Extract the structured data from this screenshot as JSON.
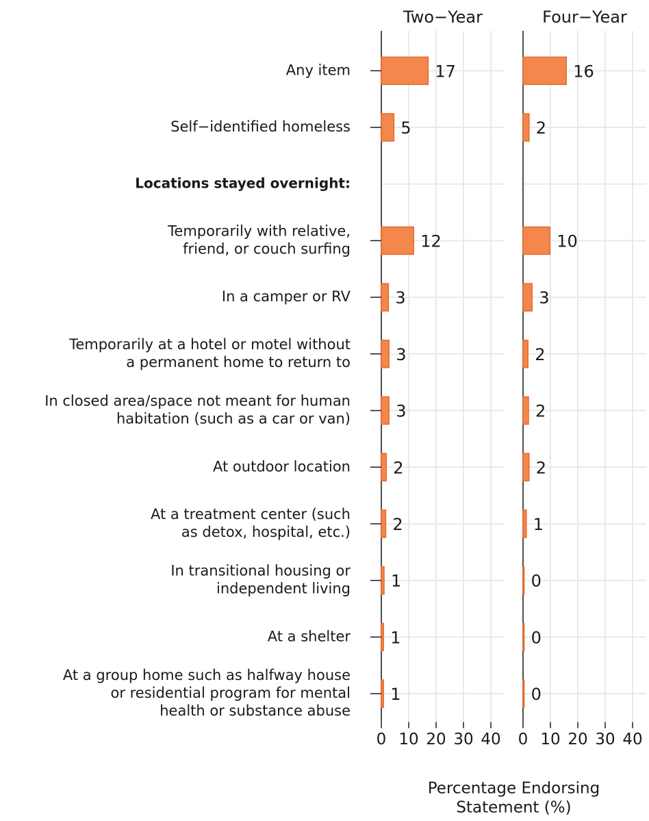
{
  "chart_data": {
    "type": "bar",
    "categories": [
      [
        "Any item"
      ],
      [
        "Self−identified homeless"
      ],
      [
        "Locations stayed overnight:"
      ],
      [
        "Temporarily with relative,",
        "friend, or couch surfing"
      ],
      [
        "In a camper or RV"
      ],
      [
        "Temporarily at a hotel or motel without",
        "a permanent home to return to"
      ],
      [
        "In closed area/space not meant for human",
        "habitation (such as a car or van)"
      ],
      [
        "At outdoor location"
      ],
      [
        "At a treatment center (such",
        "as detox, hospital, etc.)"
      ],
      [
        "In transitional housing or",
        "independent living"
      ],
      [
        "At a shelter"
      ],
      [
        "At a group home such as halfway house",
        "or residential program for mental",
        "health or substance abuse"
      ]
    ],
    "series": [
      {
        "name": "Two−Year",
        "color": "#f4874b",
        "values": [
          17.1,
          4.6,
          null,
          11.8,
          2.6,
          2.8,
          2.8,
          1.8,
          1.6,
          1.0,
          0.8,
          0.8
        ],
        "value_labels": [
          "17",
          "5",
          null,
          "12",
          "3",
          "3",
          "3",
          "2",
          "2",
          "1",
          "1",
          "1"
        ]
      },
      {
        "name": "Four−Year",
        "color": "#f4874b",
        "values": [
          15.8,
          2.2,
          null,
          9.8,
          3.3,
          1.8,
          2.0,
          2.2,
          1.2,
          0.4,
          0.4,
          0.4
        ],
        "value_labels": [
          "16",
          "2",
          null,
          "10",
          "3",
          "2",
          "2",
          "2",
          "1",
          "0",
          "0",
          "0"
        ]
      }
    ],
    "xlim": [
      0,
      45
    ],
    "xticks": [
      0,
      10,
      20,
      30,
      40
    ],
    "xlabel": [
      "Percentage Endorsing",
      "Statement (%)"
    ],
    "grid": true
  }
}
